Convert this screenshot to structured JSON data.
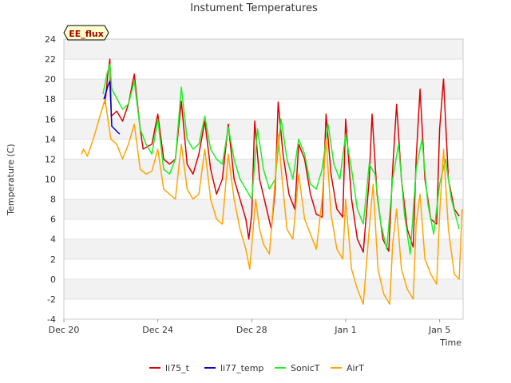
{
  "chart_data": {
    "type": "line",
    "title": "Instument Temperatures",
    "xlabel": "Time",
    "ylabel": "Temperature (C)",
    "badge": "EE_flux",
    "ylim": [
      -4,
      24
    ],
    "yticks": [
      -4,
      -2,
      0,
      2,
      4,
      6,
      8,
      10,
      12,
      14,
      16,
      18,
      20,
      22,
      24
    ],
    "xlim": [
      "2021-12-20",
      "2022-01-06"
    ],
    "xticks": [
      {
        "date": "2021-12-20",
        "label": "Dec 20"
      },
      {
        "date": "2021-12-24",
        "label": "Dec 24"
      },
      {
        "date": "2021-12-28",
        "label": "Dec 28"
      },
      {
        "date": "2022-01-01",
        "label": "Jan 1"
      },
      {
        "date": "2022-01-05",
        "label": "Jan 5"
      }
    ],
    "grid": "horizontal bands",
    "legend_position": "bottom",
    "series": [
      {
        "name": "li75_t",
        "color": "#dd0000",
        "points": [
          [
            "2021-12-21 18:00",
            17.5
          ],
          [
            "2021-12-21 21:00",
            20.5
          ],
          [
            "2021-12-21 23:00",
            22.0
          ],
          [
            "2021-12-22 00:30",
            16.3
          ],
          [
            "2021-12-22 06:00",
            16.8
          ],
          [
            "2021-12-22 12:00",
            15.8
          ],
          [
            "2021-12-22 18:00",
            17.5
          ],
          [
            "2021-12-23 00:00",
            20.5
          ],
          [
            "2021-12-23 06:00",
            15.0
          ],
          [
            "2021-12-23 09:00",
            13.0
          ],
          [
            "2021-12-23 18:00",
            13.5
          ],
          [
            "2021-12-24 00:00",
            16.5
          ],
          [
            "2021-12-24 06:00",
            12.0
          ],
          [
            "2021-12-24 12:00",
            11.5
          ],
          [
            "2021-12-24 18:00",
            12.0
          ],
          [
            "2021-12-25 00:00",
            17.8
          ],
          [
            "2021-12-25 06:00",
            11.5
          ],
          [
            "2021-12-25 12:00",
            10.5
          ],
          [
            "2021-12-25 18:00",
            12.5
          ],
          [
            "2021-12-26 00:00",
            15.8
          ],
          [
            "2021-12-26 06:00",
            11.0
          ],
          [
            "2021-12-26 12:00",
            8.5
          ],
          [
            "2021-12-26 18:00",
            10.0
          ],
          [
            "2021-12-27 00:00",
            15.5
          ],
          [
            "2021-12-27 06:00",
            10.0
          ],
          [
            "2021-12-27 12:00",
            8.0
          ],
          [
            "2021-12-27 18:00",
            6.0
          ],
          [
            "2021-12-27 21:00",
            4.0
          ],
          [
            "2021-12-28 00:00",
            6.5
          ],
          [
            "2021-12-28 03:00",
            15.8
          ],
          [
            "2021-12-28 08:00",
            10.0
          ],
          [
            "2021-12-28 14:00",
            7.5
          ],
          [
            "2021-12-28 20:00",
            5.0
          ],
          [
            "2021-12-29 00:00",
            9.0
          ],
          [
            "2021-12-29 03:00",
            17.7
          ],
          [
            "2021-12-29 08:00",
            12.5
          ],
          [
            "2021-12-29 14:00",
            8.5
          ],
          [
            "2021-12-29 20:00",
            7.0
          ],
          [
            "2021-12-30 00:00",
            13.5
          ],
          [
            "2021-12-30 06:00",
            12.0
          ],
          [
            "2021-12-30 12:00",
            8.5
          ],
          [
            "2021-12-30 18:00",
            6.5
          ],
          [
            "2021-12-31 00:00",
            6.2
          ],
          [
            "2021-12-31 04:00",
            16.5
          ],
          [
            "2021-12-31 09:00",
            10.5
          ],
          [
            "2021-12-31 15:00",
            7.0
          ],
          [
            "2021-12-31 21:00",
            6.2
          ],
          [
            "2022-01-01 00:00",
            16.0
          ],
          [
            "2022-01-01 06:00",
            8.0
          ],
          [
            "2022-01-01 12:00",
            4.0
          ],
          [
            "2022-01-01 18:00",
            2.7
          ],
          [
            "2022-01-02 00:00",
            10.0
          ],
          [
            "2022-01-02 03:00",
            16.5
          ],
          [
            "2022-01-02 08:00",
            8.5
          ],
          [
            "2022-01-02 14:00",
            4.0
          ],
          [
            "2022-01-02 20:00",
            2.8
          ],
          [
            "2022-01-03 00:00",
            11.0
          ],
          [
            "2022-01-03 04:00",
            17.5
          ],
          [
            "2022-01-03 09:00",
            10.0
          ],
          [
            "2022-01-03 15:00",
            5.0
          ],
          [
            "2022-01-03 21:00",
            3.2
          ],
          [
            "2022-01-04 00:00",
            12.0
          ],
          [
            "2022-01-04 04:00",
            19.0
          ],
          [
            "2022-01-04 09:00",
            10.0
          ],
          [
            "2022-01-04 15:00",
            6.0
          ],
          [
            "2022-01-04 21:00",
            5.5
          ],
          [
            "2022-01-05 00:00",
            15.0
          ],
          [
            "2022-01-05 04:00",
            20.0
          ],
          [
            "2022-01-05 09:00",
            10.0
          ],
          [
            "2022-01-05 15:00",
            7.0
          ],
          [
            "2022-01-05 20:00",
            6.3
          ]
        ]
      },
      {
        "name": "li77_temp",
        "color": "#0000cc",
        "points": [
          [
            "2021-12-21 17:00",
            18.0
          ],
          [
            "2021-12-21 21:00",
            19.3
          ],
          [
            "2021-12-21 23:00",
            19.8
          ],
          [
            "2021-12-22 01:00",
            15.3
          ],
          [
            "2021-12-22 09:00",
            14.5
          ]
        ]
      },
      {
        "name": "SonicT",
        "color": "#22ee22",
        "points": [
          [
            "2021-12-21 16:00",
            18.5
          ],
          [
            "2021-12-21 20:00",
            20.5
          ],
          [
            "2021-12-21 23:00",
            21.5
          ],
          [
            "2021-12-22 01:00",
            19.0
          ],
          [
            "2021-12-22 12:00",
            17.0
          ],
          [
            "2021-12-22 18:00",
            17.5
          ],
          [
            "2021-12-23 00:00",
            19.8
          ],
          [
            "2021-12-23 06:00",
            15.0
          ],
          [
            "2021-12-23 12:00",
            13.5
          ],
          [
            "2021-12-23 18:00",
            12.5
          ],
          [
            "2021-12-24 00:00",
            16.0
          ],
          [
            "2021-12-24 06:00",
            11.0
          ],
          [
            "2021-12-24 12:00",
            10.5
          ],
          [
            "2021-12-24 18:00",
            12.0
          ],
          [
            "2021-12-25 00:00",
            19.2
          ],
          [
            "2021-12-25 06:00",
            14.0
          ],
          [
            "2021-12-25 12:00",
            13.0
          ],
          [
            "2021-12-25 18:00",
            13.5
          ],
          [
            "2021-12-26 00:00",
            16.3
          ],
          [
            "2021-12-26 06:00",
            13.0
          ],
          [
            "2021-12-26 12:00",
            12.0
          ],
          [
            "2021-12-26 18:00",
            11.5
          ],
          [
            "2021-12-27 00:00",
            15.2
          ],
          [
            "2021-12-27 06:00",
            12.0
          ],
          [
            "2021-12-27 12:00",
            10.0
          ],
          [
            "2021-12-27 18:00",
            9.0
          ],
          [
            "2021-12-28 00:00",
            8.0
          ],
          [
            "2021-12-28 06:00",
            15.0
          ],
          [
            "2021-12-28 12:00",
            11.0
          ],
          [
            "2021-12-28 18:00",
            9.0
          ],
          [
            "2021-12-29 00:00",
            10.0
          ],
          [
            "2021-12-29 06:00",
            16.0
          ],
          [
            "2021-12-29 12:00",
            12.0
          ],
          [
            "2021-12-29 18:00",
            10.0
          ],
          [
            "2021-12-30 00:00",
            14.0
          ],
          [
            "2021-12-30 06:00",
            12.5
          ],
          [
            "2021-12-30 12:00",
            9.5
          ],
          [
            "2021-12-30 18:00",
            9.0
          ],
          [
            "2021-12-31 00:00",
            11.0
          ],
          [
            "2021-12-31 06:00",
            15.5
          ],
          [
            "2021-12-31 12:00",
            11.5
          ],
          [
            "2021-12-31 18:00",
            10.0
          ],
          [
            "2022-01-01 00:00",
            14.5
          ],
          [
            "2022-01-01 06:00",
            11.0
          ],
          [
            "2022-01-01 12:00",
            7.0
          ],
          [
            "2022-01-01 18:00",
            5.5
          ],
          [
            "2022-01-02 00:00",
            11.5
          ],
          [
            "2022-01-02 06:00",
            10.5
          ],
          [
            "2022-01-02 12:00",
            5.5
          ],
          [
            "2022-01-02 18:00",
            3.0
          ],
          [
            "2022-01-03 00:00",
            10.0
          ],
          [
            "2022-01-03 06:00",
            13.5
          ],
          [
            "2022-01-03 12:00",
            6.5
          ],
          [
            "2022-01-03 18:00",
            2.5
          ],
          [
            "2022-01-04 00:00",
            11.0
          ],
          [
            "2022-01-04 06:00",
            14.0
          ],
          [
            "2022-01-04 12:00",
            7.5
          ],
          [
            "2022-01-04 18:00",
            4.5
          ],
          [
            "2022-01-05 00:00",
            9.5
          ],
          [
            "2022-01-05 06:00",
            12.0
          ],
          [
            "2022-01-05 12:00",
            8.0
          ],
          [
            "2022-01-05 20:00",
            5.0
          ]
        ]
      },
      {
        "name": "AirT",
        "color": "#ffa500",
        "points": [
          [
            "2021-12-20 18:00",
            12.5
          ],
          [
            "2021-12-20 20:00",
            13.0
          ],
          [
            "2021-12-21 00:00",
            12.3
          ],
          [
            "2021-12-21 06:00",
            14.0
          ],
          [
            "2021-12-21 12:00",
            16.0
          ],
          [
            "2021-12-21 18:00",
            18.0
          ],
          [
            "2021-12-22 00:00",
            14.0
          ],
          [
            "2021-12-22 06:00",
            13.5
          ],
          [
            "2021-12-22 12:00",
            12.0
          ],
          [
            "2021-12-22 18:00",
            13.5
          ],
          [
            "2021-12-23 00:00",
            15.5
          ],
          [
            "2021-12-23 06:00",
            11.0
          ],
          [
            "2021-12-23 12:00",
            10.5
          ],
          [
            "2021-12-23 18:00",
            10.8
          ],
          [
            "2021-12-24 00:00",
            13.0
          ],
          [
            "2021-12-24 06:00",
            9.0
          ],
          [
            "2021-12-24 12:00",
            8.5
          ],
          [
            "2021-12-24 18:00",
            8.0
          ],
          [
            "2021-12-25 00:00",
            13.5
          ],
          [
            "2021-12-25 06:00",
            9.0
          ],
          [
            "2021-12-25 12:00",
            8.0
          ],
          [
            "2021-12-25 18:00",
            8.5
          ],
          [
            "2021-12-26 00:00",
            13.0
          ],
          [
            "2021-12-26 06:00",
            8.0
          ],
          [
            "2021-12-26 12:00",
            6.0
          ],
          [
            "2021-12-26 18:00",
            5.5
          ],
          [
            "2021-12-27 00:00",
            12.5
          ],
          [
            "2021-12-27 06:00",
            8.0
          ],
          [
            "2021-12-27 12:00",
            5.0
          ],
          [
            "2021-12-27 18:00",
            3.0
          ],
          [
            "2021-12-27 22:00",
            1.0
          ],
          [
            "2021-12-28 04:00",
            8.0
          ],
          [
            "2021-12-28 08:00",
            5.0
          ],
          [
            "2021-12-28 12:00",
            3.5
          ],
          [
            "2021-12-28 18:00",
            2.5
          ],
          [
            "2021-12-29 00:00",
            10.0
          ],
          [
            "2021-12-29 03:00",
            14.5
          ],
          [
            "2021-12-29 08:00",
            9.0
          ],
          [
            "2021-12-29 12:00",
            5.0
          ],
          [
            "2021-12-29 18:00",
            4.0
          ],
          [
            "2021-12-30 00:00",
            10.5
          ],
          [
            "2021-12-30 06:00",
            6.0
          ],
          [
            "2021-12-30 12:00",
            4.5
          ],
          [
            "2021-12-30 18:00",
            3.0
          ],
          [
            "2021-12-31 00:00",
            8.0
          ],
          [
            "2021-12-31 04:00",
            14.0
          ],
          [
            "2021-12-31 09:00",
            6.5
          ],
          [
            "2021-12-31 15:00",
            3.0
          ],
          [
            "2021-12-31 21:00",
            2.0
          ],
          [
            "2022-01-01 00:00",
            8.0
          ],
          [
            "2022-01-01 06:00",
            1.0
          ],
          [
            "2022-01-01 12:00",
            -1.0
          ],
          [
            "2022-01-01 18:00",
            -2.5
          ],
          [
            "2022-01-02 00:00",
            5.0
          ],
          [
            "2022-01-02 04:00",
            9.5
          ],
          [
            "2022-01-02 09:00",
            1.0
          ],
          [
            "2022-01-02 15:00",
            -1.5
          ],
          [
            "2022-01-02 21:00",
            -2.5
          ],
          [
            "2022-01-03 00:00",
            3.5
          ],
          [
            "2022-01-03 04:00",
            7.0
          ],
          [
            "2022-01-03 09:00",
            1.0
          ],
          [
            "2022-01-03 15:00",
            -1.0
          ],
          [
            "2022-01-03 21:00",
            -2.0
          ],
          [
            "2022-01-04 00:00",
            5.5
          ],
          [
            "2022-01-04 04:00",
            8.5
          ],
          [
            "2022-01-04 09:00",
            2.0
          ],
          [
            "2022-01-04 15:00",
            0.5
          ],
          [
            "2022-01-04 21:00",
            -0.5
          ],
          [
            "2022-01-05 00:00",
            6.5
          ],
          [
            "2022-01-05 04:00",
            13.0
          ],
          [
            "2022-01-05 09:00",
            5.0
          ],
          [
            "2022-01-05 15:00",
            0.5
          ],
          [
            "2022-01-05 20:00",
            0.0
          ],
          [
            "2022-01-05 23:00",
            7.0
          ]
        ]
      }
    ]
  }
}
